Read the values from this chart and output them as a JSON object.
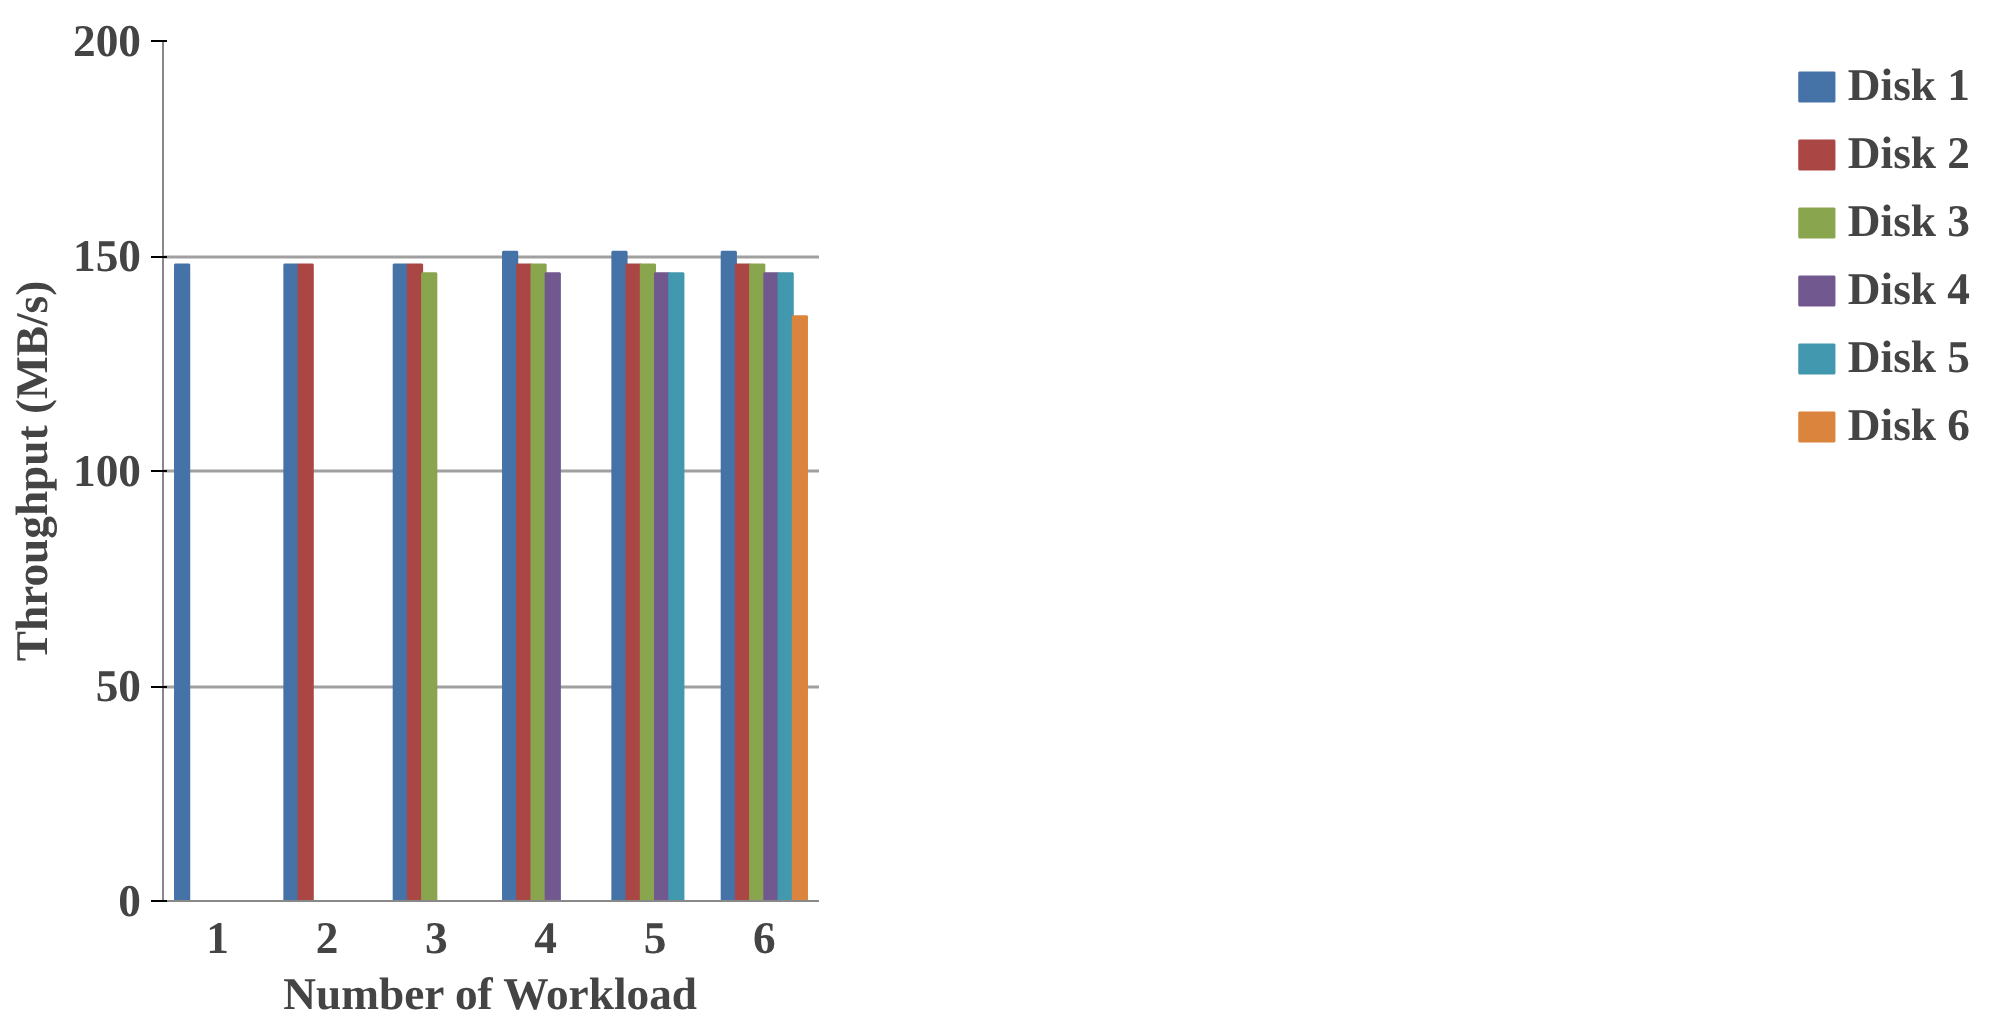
{
  "chart_data": {
    "type": "bar",
    "xlabel": "Number of Workload",
    "ylabel": "Throughput (MB/s)",
    "categories": [
      "1",
      "2",
      "3",
      "4",
      "5",
      "6"
    ],
    "series": [
      {
        "name": "Disk 1",
        "color": "#4572a7",
        "values": [
          148,
          148,
          148,
          151,
          151,
          151
        ]
      },
      {
        "name": "Disk 2",
        "color": "#aa4643",
        "values": [
          null,
          148,
          148,
          148,
          148,
          148
        ]
      },
      {
        "name": "Disk 3",
        "color": "#89a54e",
        "values": [
          null,
          null,
          146,
          148,
          148,
          148
        ]
      },
      {
        "name": "Disk 4",
        "color": "#71588f",
        "values": [
          null,
          null,
          null,
          146,
          146,
          146
        ]
      },
      {
        "name": "Disk 5",
        "color": "#4198af",
        "values": [
          null,
          null,
          null,
          null,
          146,
          146
        ]
      },
      {
        "name": "Disk 6",
        "color": "#db843d",
        "values": [
          null,
          null,
          null,
          null,
          null,
          136
        ]
      }
    ],
    "ylim": [
      0,
      200
    ],
    "yticks": [
      0,
      50,
      100,
      150,
      200
    ],
    "grid": "y",
    "legend": "right"
  }
}
